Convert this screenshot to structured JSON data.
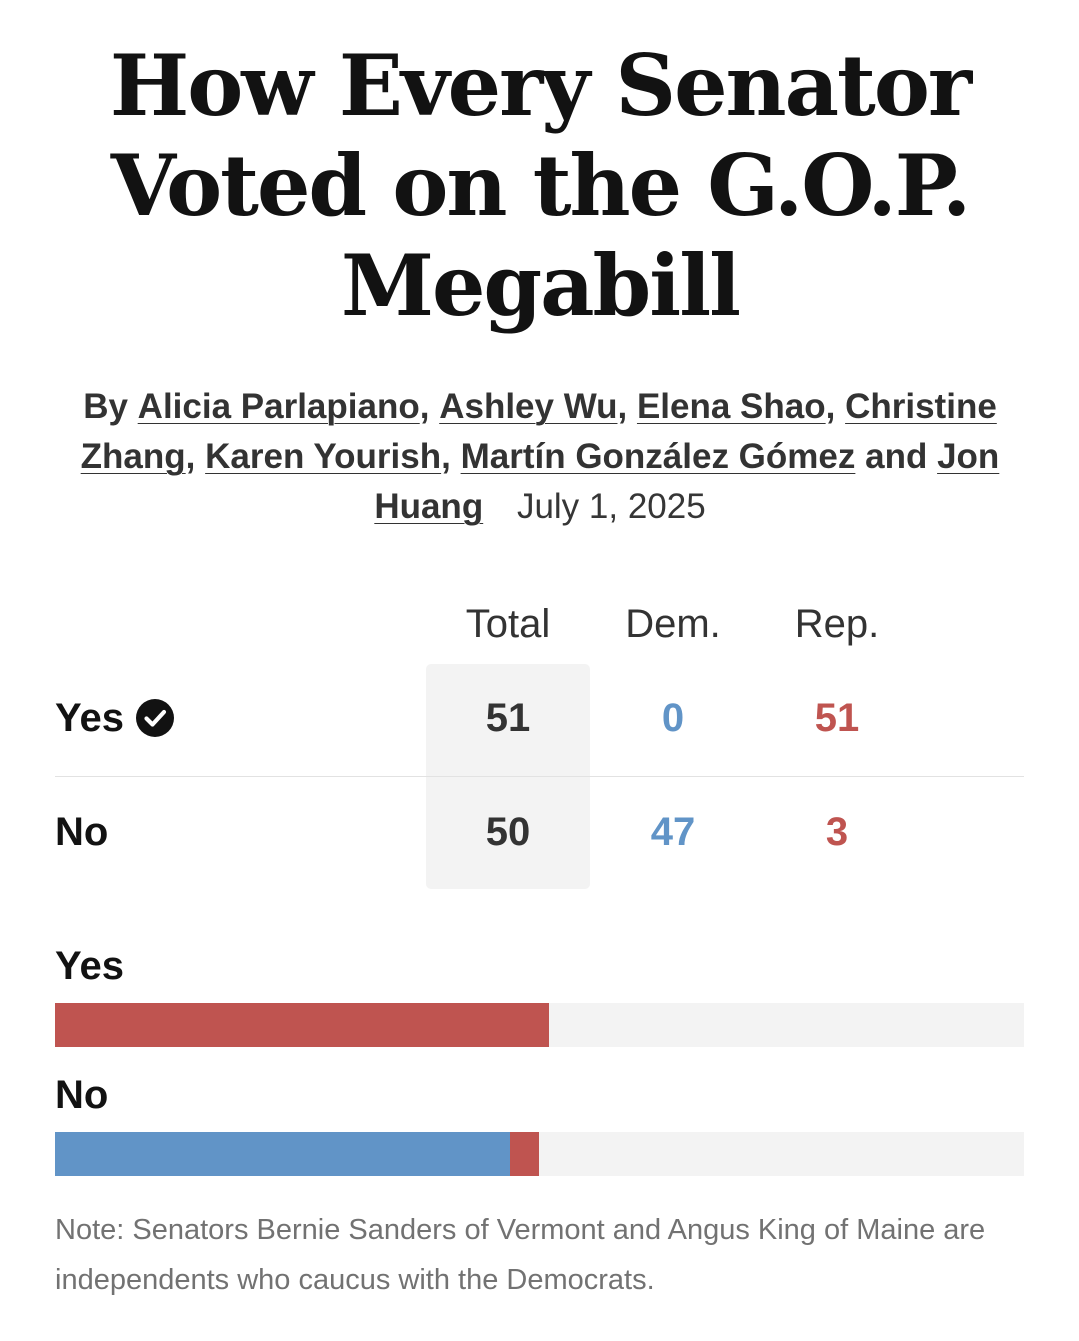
{
  "headline": "How Every Senator Voted on the G.O.P. Megabill",
  "byline": {
    "prefix": "By",
    "authors": [
      "Alicia Parlapiano",
      "Ashley Wu",
      "Elena Shao",
      "Christine Zhang",
      "Karen Yourish",
      "Martín González Gómez",
      "Jon Huang"
    ],
    "conjunction": "and",
    "date": "July 1, 2025"
  },
  "colors": {
    "dem": "#6194c7",
    "rep": "#bf5450",
    "track": "#f3f3f3",
    "total_highlight": "#f3f3f3"
  },
  "chart_data": [
    {
      "type": "table",
      "columns": [
        "Total",
        "Dem.",
        "Rep."
      ],
      "rows": [
        {
          "label": "Yes",
          "icon": "check-circle-icon",
          "values": [
            51,
            0,
            51
          ]
        },
        {
          "label": "No",
          "icon": "",
          "values": [
            50,
            47,
            3
          ]
        }
      ]
    },
    {
      "type": "bar",
      "stacked": true,
      "orientation": "horizontal",
      "categories": [
        "Yes",
        "No"
      ],
      "series": [
        {
          "key": "dem",
          "values": [
            0,
            47
          ]
        },
        {
          "key": "rep",
          "values": [
            51,
            3
          ]
        }
      ],
      "xlim": [
        0,
        100
      ]
    }
  ],
  "note": "Note: Senators Bernie Sanders of Vermont and Angus King of Maine are independents who caucus with the Democrats."
}
